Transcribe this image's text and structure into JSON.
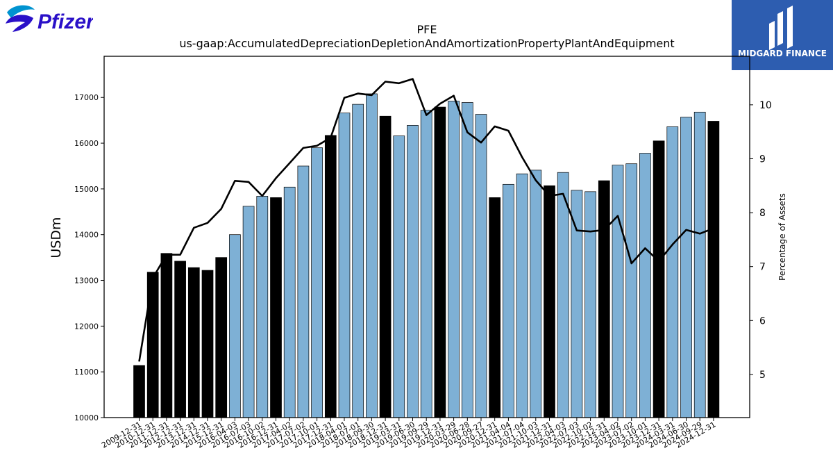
{
  "logos": {
    "left_text": "Pfizer",
    "right_text": "MIDGARD FINANCE"
  },
  "colors": {
    "bar_annual": "#000000",
    "bar_quarterly": "#7eb0d5",
    "line": "#000000",
    "pfizer_blue": "#0093d0",
    "pfizer_violet": "#2a10c8",
    "midgard_bg": "#2d5db0"
  },
  "chart_data": {
    "type": "bar",
    "title": "PFE",
    "subtitle": "us-gaap:AccumulatedDepreciationDepletionAndAmortizationPropertyPlantAndEquipment",
    "ylabel": "USDm",
    "y2label": "Percentage of Assets",
    "ylim": [
      10000,
      17900
    ],
    "y2lim": [
      4.2,
      10.9
    ],
    "yticks": [
      10000,
      11000,
      12000,
      13000,
      14000,
      15000,
      16000,
      17000
    ],
    "y2ticks": [
      5,
      6,
      7,
      8,
      9,
      10
    ],
    "categories": [
      "2009-12-31",
      "2010-12-31",
      "2011-12-31",
      "2012-12-31",
      "2013-12-31",
      "2014-12-31",
      "2015-12-31",
      "2016-04-03",
      "2016-07-03",
      "2016-10-02",
      "2016-12-31",
      "2017-04-02",
      "2017-07-02",
      "2017-10-01",
      "2017-12-31",
      "2018-04-01",
      "2018-07-01",
      "2018-09-30",
      "2018-12-31",
      "2019-03-31",
      "2019-06-30",
      "2019-09-29",
      "2019-12-31",
      "2020-03-29",
      "2020-06-28",
      "2020-09-27",
      "2020-12-31",
      "2021-04-04",
      "2021-07-04",
      "2021-10-03",
      "2021-12-31",
      "2022-04-03",
      "2022-07-03",
      "2022-10-02",
      "2022-12-31",
      "2023-04-02",
      "2023-07-02",
      "2023-10-01",
      "2023-12-31",
      "2024-03-31",
      "2024-06-30",
      "2024-09-29",
      "2024-12-31"
    ],
    "series": [
      {
        "type": "bar",
        "values": [
          11140,
          13180,
          13590,
          13420,
          13280,
          13220,
          13500,
          14000,
          14620,
          14840,
          14810,
          15040,
          15500,
          15900,
          16170,
          16660,
          16850,
          17080,
          16590,
          16160,
          16390,
          16720,
          16790,
          16920,
          16890,
          16630,
          14810,
          15100,
          15330,
          15410,
          15070,
          15360,
          14970,
          14940,
          15180,
          15520,
          15550,
          15780,
          16050,
          16360,
          16570,
          16680,
          16480
        ],
        "annual": [
          true,
          true,
          true,
          true,
          true,
          true,
          true,
          false,
          false,
          false,
          true,
          false,
          false,
          false,
          true,
          false,
          false,
          false,
          true,
          false,
          false,
          false,
          true,
          false,
          false,
          false,
          true,
          false,
          false,
          false,
          true,
          false,
          false,
          false,
          true,
          false,
          false,
          false,
          true,
          false,
          false,
          false,
          true
        ]
      },
      {
        "type": "line",
        "axis": "right",
        "values": [
          5.24,
          6.79,
          7.22,
          7.22,
          7.72,
          7.81,
          8.07,
          8.59,
          8.57,
          8.31,
          8.64,
          8.92,
          9.2,
          9.24,
          9.39,
          10.13,
          10.21,
          10.18,
          10.43,
          10.4,
          10.48,
          9.81,
          10.02,
          10.17,
          9.49,
          9.3,
          9.6,
          9.52,
          9.03,
          8.6,
          8.31,
          8.35,
          7.67,
          7.65,
          7.68,
          7.94,
          7.06,
          7.34,
          7.1,
          7.41,
          7.68,
          7.61,
          7.71
        ]
      }
    ],
    "grid": false,
    "legend": "none"
  }
}
